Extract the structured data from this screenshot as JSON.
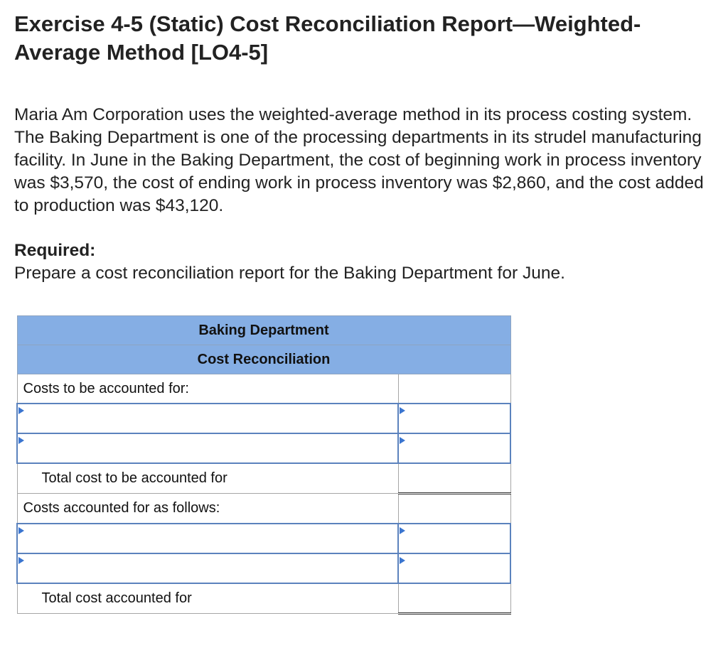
{
  "exercise": {
    "title": "Exercise 4-5 (Static) Cost Reconciliation Report—Weighted-Average Method [LO4-5]",
    "description": "Maria Am Corporation uses the weighted-average method in its process costing system. The Baking Department is one of the processing departments in its strudel manufacturing facility. In June in the Baking Department, the cost of beginning work in process inventory was $3,570, the cost of ending work in process inventory was $2,860, and the cost added to production was $43,120.",
    "required_label": "Required:",
    "required_text": "Prepare a cost reconciliation report for the Baking Department for June."
  },
  "table": {
    "header_line1": "Baking Department",
    "header_line2": "Cost Reconciliation",
    "section1_label": "Costs to be accounted for:",
    "section1_total": "Total cost to be accounted for",
    "section2_label": "Costs accounted for as follows:",
    "section2_total": "Total cost accounted for",
    "inputs": {
      "s1_row1_label": "",
      "s1_row1_value": "",
      "s1_row2_label": "",
      "s1_row2_value": "",
      "s1_total_value": "",
      "s2_row1_label": "",
      "s2_row1_value": "",
      "s2_row2_label": "",
      "s2_row2_value": "",
      "s2_total_value": ""
    },
    "colors": {
      "header_bg": "#85aee4",
      "input_border": "#5b82bd",
      "dropdown_marker": "#3a75d0"
    }
  }
}
